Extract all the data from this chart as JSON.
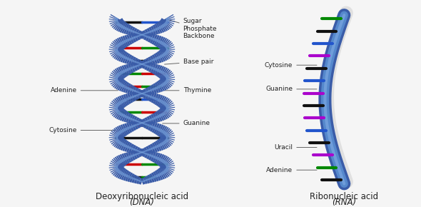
{
  "dna_label_line1": "Deoxyribonucleic acid",
  "dna_label_line2": "(DNA)",
  "rna_label_line1": "Ribonucleic acid",
  "rna_label_line2": "(RNA)",
  "colors": {
    "backbone_dark": "#3a5ca8",
    "backbone_mid": "#4a72c8",
    "backbone_light": "#7ba7e0",
    "adenine": "#008800",
    "thymine": "#cc0000",
    "cytosine": "#cc0000",
    "guanine": "#008800",
    "black_pair": "#111111",
    "uracil": "#aa00cc",
    "rna_blue": "#2255cc",
    "background": "#f5f5f5",
    "label_text": "#222222",
    "ann_line": "#666666"
  },
  "dna_rungs": [
    {
      "colors": [
        "#111111",
        "#008800"
      ],
      "t": 0.0
    },
    {
      "colors": [
        "#cc0000",
        "#008800"
      ],
      "t": 0.083
    },
    {
      "colors": [
        "#008800",
        "#cc0000"
      ],
      "t": 0.166
    },
    {
      "colors": [
        "#111111",
        "#111111"
      ],
      "t": 0.25
    },
    {
      "colors": [
        "#cc0000",
        "#008800"
      ],
      "t": 0.333
    },
    {
      "colors": [
        "#008800",
        "#cc0000"
      ],
      "t": 0.416
    },
    {
      "colors": [
        "#111111",
        "#2255cc"
      ],
      "t": 0.5
    },
    {
      "colors": [
        "#cc0000",
        "#008800"
      ],
      "t": 0.583
    },
    {
      "colors": [
        "#008800",
        "#cc0000"
      ],
      "t": 0.666
    },
    {
      "colors": [
        "#111111",
        "#111111"
      ],
      "t": 0.75
    },
    {
      "colors": [
        "#cc0000",
        "#008800"
      ],
      "t": 0.833
    },
    {
      "colors": [
        "#008800",
        "#cc0000"
      ],
      "t": 0.916
    },
    {
      "colors": [
        "#111111",
        "#2255cc"
      ],
      "t": 1.0
    }
  ],
  "rna_rungs": [
    "#111111",
    "#008800",
    "#aa00cc",
    "#111111",
    "#2255cc",
    "#aa00cc",
    "#111111",
    "#aa00cc",
    "#2255cc",
    "#111111",
    "#aa00cc",
    "#2255cc",
    "#111111",
    "#008800"
  ],
  "fontsize_small": 6.5,
  "fontsize_title": 8.5
}
